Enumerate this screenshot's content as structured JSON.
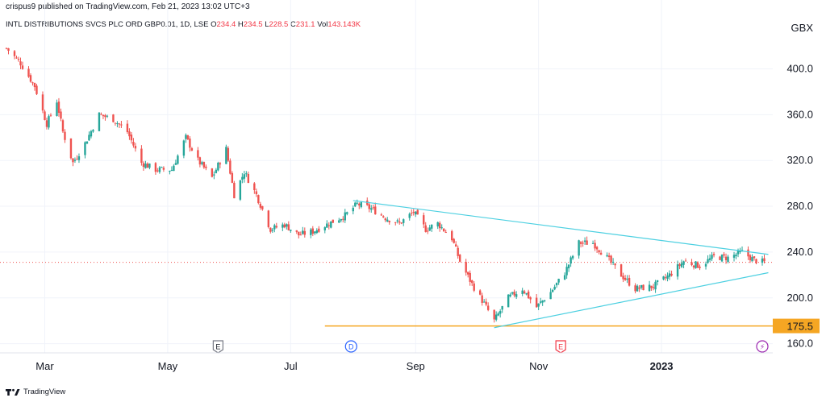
{
  "header": {
    "publisher": "crispus9 published on TradingView.com, Feb 21, 2023 13:02 UTC+3",
    "symbol": "INTL DISTRIBUTIONS SVCS PLC ORD GBP0.01, 1D, LSE",
    "ohlc": [
      {
        "label": "O",
        "value": "234.4"
      },
      {
        "label": "H",
        "value": "234.5"
      },
      {
        "label": "L",
        "value": "228.5"
      },
      {
        "label": "C",
        "value": "231.1"
      },
      {
        "label": "Vol",
        "value": "143.143K"
      }
    ]
  },
  "footer": {
    "brand": "TradingView"
  },
  "colors": {
    "up": "#26a69a",
    "down": "#ef5350",
    "trendline": "#4dd0e1",
    "support": "#f5a623",
    "grid": "#f0f3fa",
    "axis_text": "#131722"
  },
  "chart_data": {
    "type": "candlestick",
    "currency_label": "GBX",
    "y_ticks": [
      "160.0",
      "200.0",
      "240.0",
      "280.0",
      "320.0",
      "360.0",
      "400.0"
    ],
    "y_tick_values": [
      160,
      200,
      240,
      280,
      320,
      360,
      400
    ],
    "ylim": [
      152,
      432
    ],
    "x_range": [
      "2023-02-17",
      "2023-02-21"
    ],
    "x_tick_labels": [
      "Mar",
      "May",
      "Jul",
      "Sep",
      "Nov",
      "2023"
    ],
    "x_tick_dates": [
      "2022-03-01",
      "2022-05-01",
      "2022-07-01",
      "2022-09-01",
      "2022-11-01",
      "2023-01-01"
    ],
    "last_price": 231.1,
    "support_level": {
      "value": 175.5,
      "label": "175.5",
      "start_date": "2022-07-18"
    },
    "trendlines": [
      {
        "from": {
          "date": "2022-08-01",
          "price": 285
        },
        "to": {
          "date": "2023-02-23",
          "price": 238
        }
      },
      {
        "from": {
          "date": "2022-10-10",
          "price": 174
        },
        "to": {
          "date": "2023-02-23",
          "price": 222
        }
      }
    ],
    "event_markers": [
      {
        "date": "2022-05-26",
        "label": "E"
      },
      {
        "date": "2022-07-31",
        "label": "D"
      },
      {
        "date": "2022-11-12",
        "label": "E"
      },
      {
        "date": "2023-02-20",
        "label": "⚡"
      }
    ],
    "price_path": [
      [
        "2022-02-10",
        418
      ],
      [
        "2022-02-17",
        405
      ],
      [
        "2022-02-24",
        385
      ],
      [
        "2022-03-02",
        352
      ],
      [
        "2022-03-07",
        372
      ],
      [
        "2022-03-10",
        345
      ],
      [
        "2022-03-15",
        318
      ],
      [
        "2022-03-21",
        335
      ],
      [
        "2022-03-28",
        360
      ],
      [
        "2022-04-04",
        356
      ],
      [
        "2022-04-11",
        345
      ],
      [
        "2022-04-18",
        318
      ],
      [
        "2022-04-25",
        312
      ],
      [
        "2022-05-03",
        312
      ],
      [
        "2022-05-10",
        340
      ],
      [
        "2022-05-16",
        320
      ],
      [
        "2022-05-23",
        305
      ],
      [
        "2022-05-30",
        330
      ],
      [
        "2022-06-03",
        290
      ],
      [
        "2022-06-08",
        310
      ],
      [
        "2022-06-14",
        290
      ],
      [
        "2022-06-21",
        260
      ],
      [
        "2022-06-28",
        264
      ],
      [
        "2022-07-05",
        255
      ],
      [
        "2022-07-12",
        258
      ],
      [
        "2022-07-20",
        265
      ],
      [
        "2022-07-28",
        272
      ],
      [
        "2022-08-03",
        282
      ],
      [
        "2022-08-10",
        278
      ],
      [
        "2022-08-17",
        270
      ],
      [
        "2022-08-24",
        265
      ],
      [
        "2022-08-31",
        275
      ],
      [
        "2022-09-06",
        260
      ],
      [
        "2022-09-12",
        265
      ],
      [
        "2022-09-19",
        252
      ],
      [
        "2022-09-23",
        232
      ],
      [
        "2022-09-29",
        212
      ],
      [
        "2022-10-05",
        195
      ],
      [
        "2022-10-10",
        180
      ],
      [
        "2022-10-17",
        200
      ],
      [
        "2022-10-24",
        208
      ],
      [
        "2022-10-31",
        192
      ],
      [
        "2022-11-07",
        205
      ],
      [
        "2022-11-14",
        222
      ],
      [
        "2022-11-21",
        248
      ],
      [
        "2022-11-28",
        248
      ],
      [
        "2022-12-05",
        235
      ],
      [
        "2022-12-12",
        220
      ],
      [
        "2022-12-19",
        208
      ],
      [
        "2022-12-28",
        210
      ],
      [
        "2023-01-05",
        220
      ],
      [
        "2023-01-12",
        232
      ],
      [
        "2023-01-20",
        228
      ],
      [
        "2023-01-27",
        236
      ],
      [
        "2023-02-03",
        235
      ],
      [
        "2023-02-10",
        240
      ],
      [
        "2023-02-16",
        233
      ],
      [
        "2023-02-21",
        231.1
      ]
    ]
  }
}
